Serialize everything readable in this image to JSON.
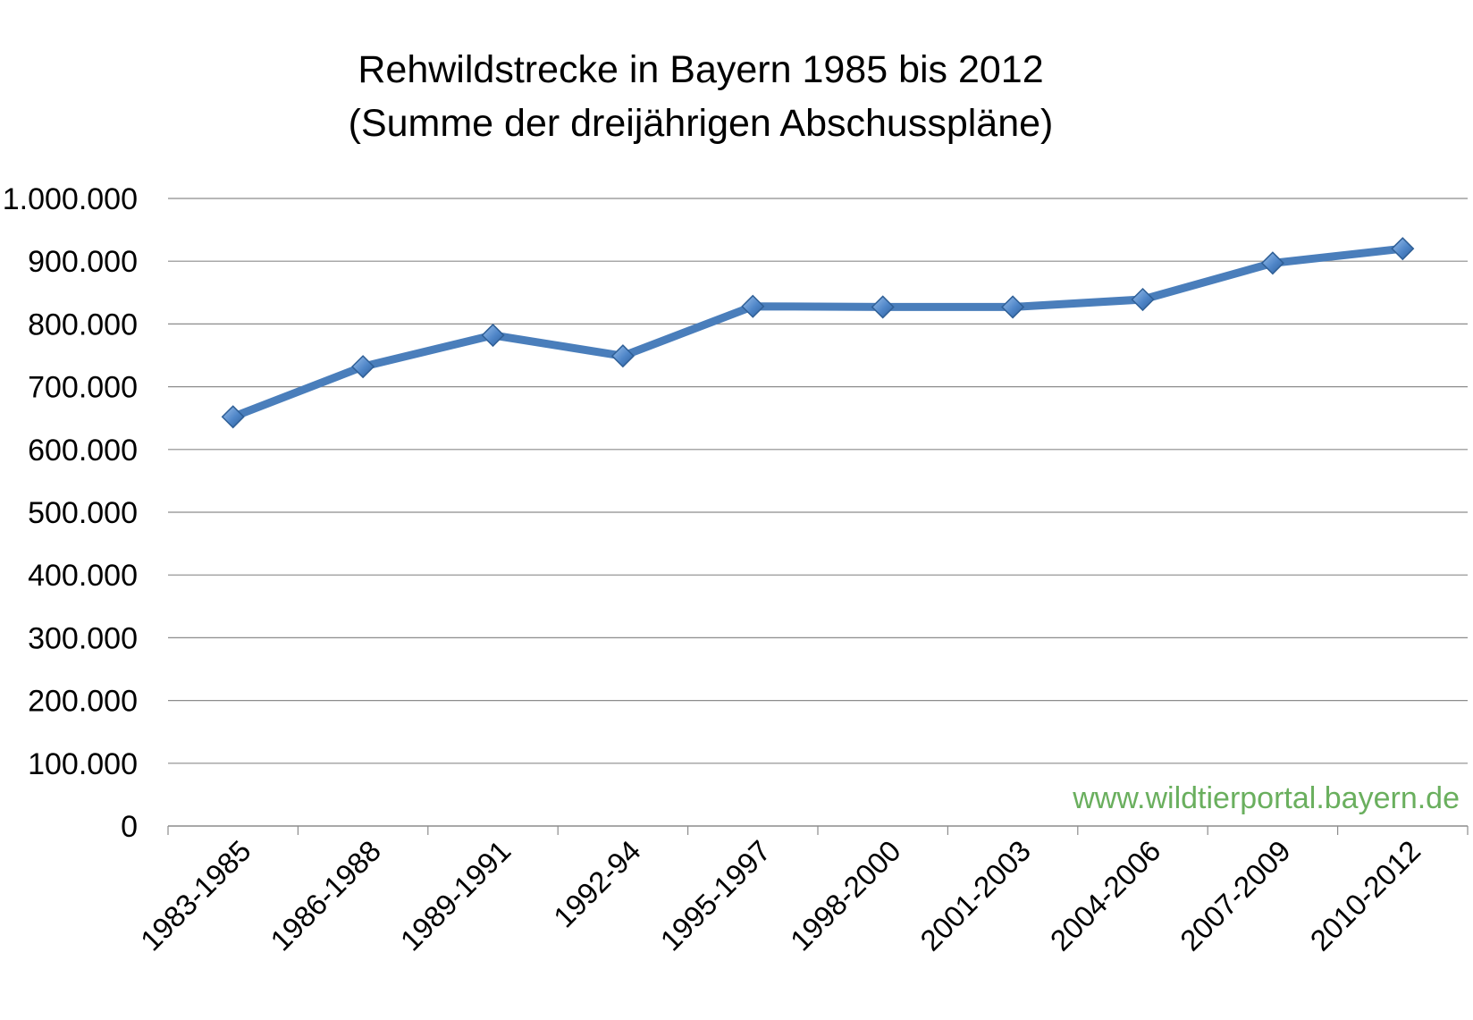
{
  "chart_data": {
    "type": "line",
    "title": "Rehwildstrecke in Bayern 1985 bis 2012",
    "subtitle": "(Summe der dreijährigen Abschusspläne)",
    "xlabel": "",
    "ylabel": "",
    "categories": [
      "1983-1985",
      "1986-1988",
      "1989-1991",
      "1992-94",
      "1995-1997",
      "1998-2000",
      "2001-2003",
      "2004-2006",
      "2007-2009",
      "2010-2012"
    ],
    "values": [
      652000,
      732000,
      782000,
      749000,
      828000,
      827000,
      827000,
      839000,
      897000,
      920000
    ],
    "ylim": [
      0,
      1000000
    ],
    "yticks": [
      0,
      100000,
      200000,
      300000,
      400000,
      500000,
      600000,
      700000,
      800000,
      900000,
      1000000
    ],
    "ytick_labels": [
      "0",
      "100.000",
      "200.000",
      "300.000",
      "400.000",
      "500.000",
      "600.000",
      "700.000",
      "800.000",
      "900.000",
      "1.000.000"
    ],
    "grid": true,
    "legend": "none",
    "marker": "diamond",
    "line_color": "#4a7ebb",
    "annotation": "www.wildtierportal.bayern.de",
    "annotation_color": "#6aaf5e",
    "grid_color": "#8c8c8c"
  }
}
